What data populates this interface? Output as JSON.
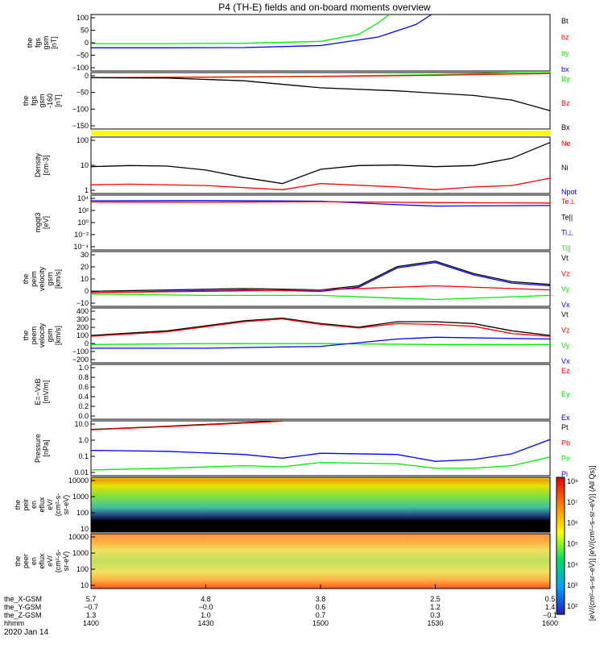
{
  "title": "P4 (TH-E) fields and on-board moments overview",
  "colors": {
    "black": "#000000",
    "red": "#ff0000",
    "green": "#00ee00",
    "blue": "#0000ff",
    "yellow": "#ffff00"
  },
  "chart_data": [
    {
      "id": "fgs",
      "type": "line",
      "ylabel": [
        "the",
        "fgs",
        "gsm",
        "[nT]"
      ],
      "yticks": [
        "100",
        "50",
        "0",
        "−50",
        "−100"
      ],
      "ylim": [
        -100,
        100
      ],
      "legend": [
        {
          "name": "Bt",
          "color": "#000000"
        },
        {
          "name": "bz",
          "color": "#ff0000"
        },
        {
          "name": "by",
          "color": "#00ee00"
        },
        {
          "name": "bx",
          "color": "#0000ff"
        }
      ],
      "series": [
        {
          "name": "by",
          "color": "#00ee00",
          "x": [
            1400,
            1420,
            1440,
            1500,
            1510,
            1515,
            1518
          ],
          "y": [
            -3,
            -3,
            -2,
            5,
            30,
            70,
            100
          ]
        },
        {
          "name": "bx",
          "color": "#0000ff",
          "x": [
            1400,
            1420,
            1440,
            1500,
            1515,
            1525,
            1529
          ],
          "y": [
            -18,
            -18,
            -17,
            -10,
            20,
            65,
            100
          ]
        }
      ]
    },
    {
      "id": "fgs_dsl",
      "type": "line",
      "ylabel": [
        "the",
        "fgs",
        "gsm",
        "-160",
        "[nT]"
      ],
      "yticks": [
        "0",
        "−50",
        "−100",
        "−150"
      ],
      "ylim": [
        -170,
        15
      ],
      "legend": [
        {
          "name": "By",
          "color": "#00ee00"
        },
        {
          "name": "Bz",
          "color": "#ff0000"
        },
        {
          "name": "Bx",
          "color": "#000000"
        }
      ],
      "series": [
        {
          "name": "By",
          "color": "#00ee00",
          "x": [
            1400,
            1430,
            1500,
            1530,
            1550,
            1600
          ],
          "y": [
            -2,
            0,
            3,
            8,
            14,
            20
          ]
        },
        {
          "name": "Bz",
          "color": "#ff0000",
          "x": [
            1400,
            1430,
            1500,
            1530,
            1550,
            1600
          ],
          "y": [
            -2,
            0,
            2,
            6,
            10,
            12
          ]
        },
        {
          "name": "Bx",
          "color": "#000000",
          "x": [
            1400,
            1420,
            1440,
            1500,
            1520,
            1540,
            1550,
            1600
          ],
          "y": [
            -2,
            -3,
            -12,
            -35,
            -45,
            -60,
            -75,
            -110
          ]
        }
      ]
    },
    {
      "id": "density",
      "type": "line",
      "scale": "log",
      "ylabel": [
        "Density",
        "[cm-3]"
      ],
      "yticks": [
        "100",
        "10",
        "1"
      ],
      "ylim": [
        0.7,
        150
      ],
      "legend": [
        {
          "name": "Ne",
          "color": "#ff0000"
        },
        {
          "name": "Ni",
          "color": "#000000"
        },
        {
          "name": "Npot",
          "color": "#0000ff"
        }
      ],
      "series": [
        {
          "name": "Ni",
          "color": "#000000",
          "x": [
            1400,
            1410,
            1420,
            1430,
            1440,
            1450,
            1500,
            1510,
            1520,
            1530,
            1540,
            1550,
            1600
          ],
          "y": [
            9,
            10,
            9.5,
            6.5,
            3.2,
            1.8,
            7,
            10,
            10.5,
            9,
            10,
            20,
            90
          ]
        },
        {
          "name": "Ne",
          "color": "#ff0000",
          "x": [
            1400,
            1410,
            1430,
            1450,
            1500,
            1520,
            1530,
            1540,
            1550,
            1600
          ],
          "y": [
            1.6,
            1.7,
            1.5,
            1.0,
            1.8,
            1.3,
            1.0,
            1.3,
            1.5,
            3
          ]
        }
      ]
    },
    {
      "id": "temperature",
      "type": "line",
      "scale": "log",
      "ylabel": [
        "mgqt3",
        "[eV]"
      ],
      "yticks": [
        "10⁴",
        "10²",
        "10⁰",
        "10⁻²",
        "10⁻⁴"
      ],
      "ylim": [
        0.0001,
        10000
      ],
      "legend": [
        {
          "name": "Te⊥",
          "color": "#ff0000"
        },
        {
          "name": "Te||",
          "color": "#000000"
        },
        {
          "name": "Ti⊥",
          "color": "#0000ff"
        },
        {
          "name": "Ti||",
          "color": "#00ee00"
        }
      ],
      "series": [
        {
          "name": "Ti",
          "color": "#0000ff",
          "x": [
            1400,
            1430,
            1500,
            1520,
            1530,
            1600
          ],
          "y": [
            1500,
            1600,
            1300,
            400,
            250,
            300
          ]
        },
        {
          "name": "Te",
          "color": "#ff0000",
          "x": [
            1400,
            1430,
            1500,
            1530,
            1600
          ],
          "y": [
            1000,
            900,
            1100,
            800,
            700
          ]
        }
      ]
    },
    {
      "id": "velocity_peim",
      "type": "line",
      "ylabel": [
        "the",
        "peim",
        "velocity",
        "gsm",
        "[km/s]"
      ],
      "yticks": [
        "30",
        "20",
        "10",
        "0",
        "−10"
      ],
      "ylim": [
        -10,
        30
      ],
      "legend": [
        {
          "name": "Vt",
          "color": "#000000"
        },
        {
          "name": "Vz",
          "color": "#ff0000"
        },
        {
          "name": "Vy",
          "color": "#00ee00"
        },
        {
          "name": "Vx",
          "color": "#0000ff"
        }
      ],
      "series": [
        {
          "name": "Vt",
          "color": "#000000",
          "x": [
            1400,
            1420,
            1440,
            1500,
            1510,
            1520,
            1530,
            1540,
            1550,
            1600
          ],
          "y": [
            1,
            2,
            3,
            2,
            5,
            19,
            23,
            14,
            8,
            6
          ]
        },
        {
          "name": "Vx",
          "color": "#0000ff",
          "x": [
            1400,
            1420,
            1440,
            1500,
            1510,
            1520,
            1530,
            1540,
            1550,
            1600
          ],
          "y": [
            0,
            1,
            2,
            1,
            4,
            18,
            22,
            13,
            7,
            5
          ]
        },
        {
          "name": "Vz",
          "color": "#ff0000",
          "x": [
            1400,
            1430,
            1500,
            1520,
            1530,
            1550,
            1600
          ],
          "y": [
            0,
            1,
            2,
            4,
            5,
            3,
            2
          ]
        },
        {
          "name": "Vy",
          "color": "#00ee00",
          "x": [
            1400,
            1430,
            1500,
            1520,
            1530,
            1550,
            1600
          ],
          "y": [
            -1,
            -2,
            -2,
            -4,
            -5,
            -3,
            -2
          ]
        }
      ]
    },
    {
      "id": "velocity_peem",
      "type": "line",
      "ylabel": [
        "the",
        "peem",
        "velocity",
        "gsm",
        "[km/s]"
      ],
      "yticks": [
        "400",
        "300",
        "200",
        "100",
        "0",
        "−100",
        "−200"
      ],
      "ylim": [
        -200,
        400
      ],
      "legend": [
        {
          "name": "Vt",
          "color": "#000000"
        },
        {
          "name": "Vz",
          "color": "#ff0000"
        },
        {
          "name": "Vy",
          "color": "#00ee00"
        },
        {
          "name": "Vx",
          "color": "#0000ff"
        }
      ],
      "series": [
        {
          "name": "Vt",
          "color": "#000000",
          "x": [
            1400,
            1420,
            1440,
            1450,
            1500,
            1510,
            1520,
            1530,
            1540,
            1550,
            1600
          ],
          "y": [
            100,
            150,
            260,
            290,
            230,
            190,
            250,
            250,
            230,
            150,
            100
          ]
        },
        {
          "name": "Vz",
          "color": "#ff0000",
          "x": [
            1400,
            1420,
            1440,
            1450,
            1500,
            1510,
            1520,
            1530,
            1540,
            1550,
            1600
          ],
          "y": [
            90,
            140,
            250,
            280,
            220,
            180,
            230,
            220,
            200,
            120,
            90
          ]
        },
        {
          "name": "Vy",
          "color": "#00ee00",
          "x": [
            1400,
            1430,
            1500,
            1530,
            1600
          ],
          "y": [
            0,
            10,
            10,
            0,
            0
          ]
        },
        {
          "name": "Vx",
          "color": "#0000ff",
          "x": [
            1400,
            1430,
            1500,
            1520,
            1530,
            1600
          ],
          "y": [
            -40,
            -40,
            -20,
            60,
            80,
            60
          ]
        }
      ]
    },
    {
      "id": "efield",
      "type": "line",
      "ylabel": [
        "E=−VxB",
        "[mV/m]"
      ],
      "yticks": [
        "1.0",
        "0.8",
        "0.6",
        "0.4",
        "0.2",
        "0.0"
      ],
      "ylim": [
        0,
        1
      ],
      "legend": [
        {
          "name": "Ez",
          "color": "#ff0000"
        },
        {
          "name": "Ey",
          "color": "#00ee00"
        },
        {
          "name": "Ex",
          "color": "#0000ff"
        }
      ],
      "series": []
    },
    {
      "id": "pressure",
      "type": "line",
      "scale": "log",
      "ylabel": [
        "Pressure",
        "[nPa]"
      ],
      "yticks": [
        "10.0",
        "1.0",
        "0.1",
        "0.01"
      ],
      "ylim": [
        0.006,
        40
      ],
      "legend": [
        {
          "name": "Pt",
          "color": "#000000"
        },
        {
          "name": "Pb",
          "color": "#ff0000"
        },
        {
          "name": "Pe",
          "color": "#00ee00"
        },
        {
          "name": "Pi",
          "color": "#0000ff"
        }
      ],
      "series": [
        {
          "name": "Pt",
          "color": "#000000",
          "x": [
            1400,
            1420,
            1440,
            1450
          ],
          "y": [
            10,
            17,
            30,
            40
          ]
        },
        {
          "name": "Pb",
          "color": "#ff0000",
          "x": [
            1400,
            1420,
            1440,
            1450
          ],
          "y": [
            9.5,
            16,
            28,
            38
          ]
        },
        {
          "name": "Pi",
          "color": "#0000ff",
          "x": [
            1400,
            1420,
            1440,
            1450,
            1500,
            1520,
            1530,
            1540,
            1550,
            1600
          ],
          "y": [
            0.35,
            0.3,
            0.18,
            0.1,
            0.22,
            0.18,
            0.06,
            0.08,
            0.2,
            2
          ]
        },
        {
          "name": "Pe",
          "color": "#00ee00",
          "x": [
            1400,
            1420,
            1440,
            1450,
            1500,
            1520,
            1530,
            1540,
            1550,
            1600
          ],
          "y": [
            0.015,
            0.02,
            0.03,
            0.025,
            0.05,
            0.04,
            0.02,
            0.02,
            0.03,
            0.12
          ]
        }
      ]
    },
    {
      "id": "peir_eflux",
      "type": "heatmap",
      "ylabel": [
        "the",
        "peir",
        "en",
        "eflux",
        "eV/",
        "(cm²-s-",
        "sr-eV)"
      ],
      "yticks": [
        "10000",
        "1000",
        "100",
        "10"
      ]
    },
    {
      "id": "peer_eflux",
      "type": "heatmap",
      "ylabel": [
        "the",
        "peer",
        "en",
        "eflux",
        "eV/",
        "(cm²-s-",
        "sr-eV)"
      ],
      "yticks": [
        "10000",
        "1000",
        "100",
        "10"
      ]
    }
  ],
  "colorbar": {
    "ticks": [
      "10⁸",
      "10⁷",
      "10⁶",
      "10⁵",
      "10⁴",
      "10³",
      "10²"
    ],
    "label": "[eV/(cm²–s–sr–eV)]   [eV/(cm²–s–sr–eV)] (All Qs)]"
  },
  "x_axis": {
    "rows": [
      {
        "label": "the_X-GSM",
        "values": [
          "5.7",
          "4.8",
          "3.8",
          "2.5",
          "0.5"
        ]
      },
      {
        "label": "the_Y-GSM",
        "values": [
          "−0.7",
          "−0.0",
          "0.6",
          "1.2",
          "1.4"
        ]
      },
      {
        "label": "the_Z-GSM",
        "values": [
          "1.3",
          "1.0",
          "0.7",
          "0.3",
          "−0.1"
        ]
      },
      {
        "label": "hhmm",
        "values": [
          "1400",
          "1430",
          "1500",
          "1530",
          "1600"
        ]
      }
    ],
    "date": "2020 Jan 14"
  }
}
